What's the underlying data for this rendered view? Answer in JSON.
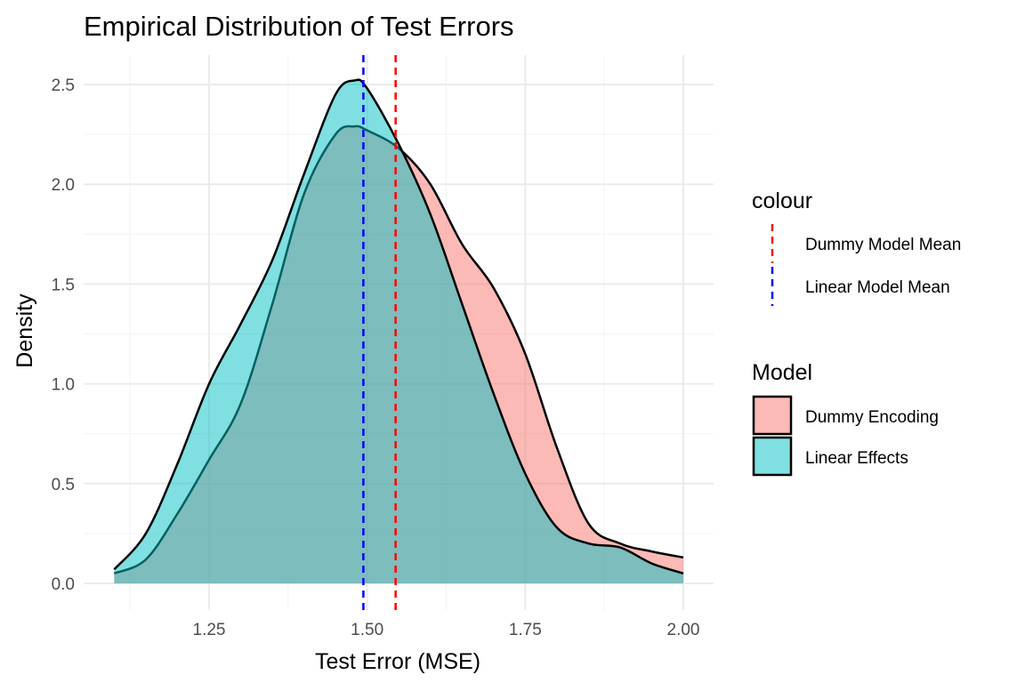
{
  "chart_data": {
    "type": "area",
    "title": "Empirical Distribution of Test Errors",
    "xlabel": "Test Error (MSE)",
    "ylabel": "Density",
    "xlim": [
      1.1,
      2.0
    ],
    "ylim": [
      0,
      2.5
    ],
    "x_ticks": [
      "1.25",
      "1.50",
      "1.75",
      "2.00"
    ],
    "y_ticks": [
      "0.0",
      "0.5",
      "1.0",
      "1.5",
      "2.0",
      "2.5"
    ],
    "grid": true,
    "fill_legend": {
      "title": "Model",
      "position": "right",
      "entries": [
        "Dummy Encoding",
        "Linear Effects"
      ]
    },
    "colour_legend": {
      "title": "colour",
      "position": "right",
      "entries": [
        "Dummy Model Mean",
        "Linear Model Mean"
      ]
    },
    "series": [
      {
        "name": "Dummy Encoding",
        "color": "#F8766D",
        "x": [
          1.1,
          1.15,
          1.2,
          1.25,
          1.3,
          1.35,
          1.4,
          1.45,
          1.48,
          1.5,
          1.55,
          1.6,
          1.65,
          1.7,
          1.75,
          1.8,
          1.85,
          1.9,
          1.95,
          2.0
        ],
        "y": [
          0.05,
          0.12,
          0.35,
          0.62,
          0.9,
          1.4,
          1.95,
          2.25,
          2.29,
          2.27,
          2.18,
          2.0,
          1.7,
          1.48,
          1.15,
          0.68,
          0.3,
          0.2,
          0.16,
          0.13
        ]
      },
      {
        "name": "Linear Effects",
        "color": "#00BFC4",
        "x": [
          1.1,
          1.15,
          1.2,
          1.25,
          1.3,
          1.35,
          1.4,
          1.45,
          1.48,
          1.5,
          1.55,
          1.6,
          1.65,
          1.7,
          1.75,
          1.8,
          1.85,
          1.9,
          1.95,
          2.0
        ],
        "y": [
          0.07,
          0.25,
          0.6,
          1.0,
          1.3,
          1.62,
          2.05,
          2.45,
          2.52,
          2.48,
          2.2,
          1.85,
          1.4,
          0.95,
          0.55,
          0.28,
          0.2,
          0.18,
          0.1,
          0.05
        ]
      }
    ],
    "reference_lines": [
      {
        "name": "Dummy Model Mean",
        "x": 1.545,
        "color": "#FF0000",
        "style": "dashed"
      },
      {
        "name": "Linear Model Mean",
        "x": 1.494,
        "color": "#0000FF",
        "style": "dashed"
      }
    ]
  }
}
